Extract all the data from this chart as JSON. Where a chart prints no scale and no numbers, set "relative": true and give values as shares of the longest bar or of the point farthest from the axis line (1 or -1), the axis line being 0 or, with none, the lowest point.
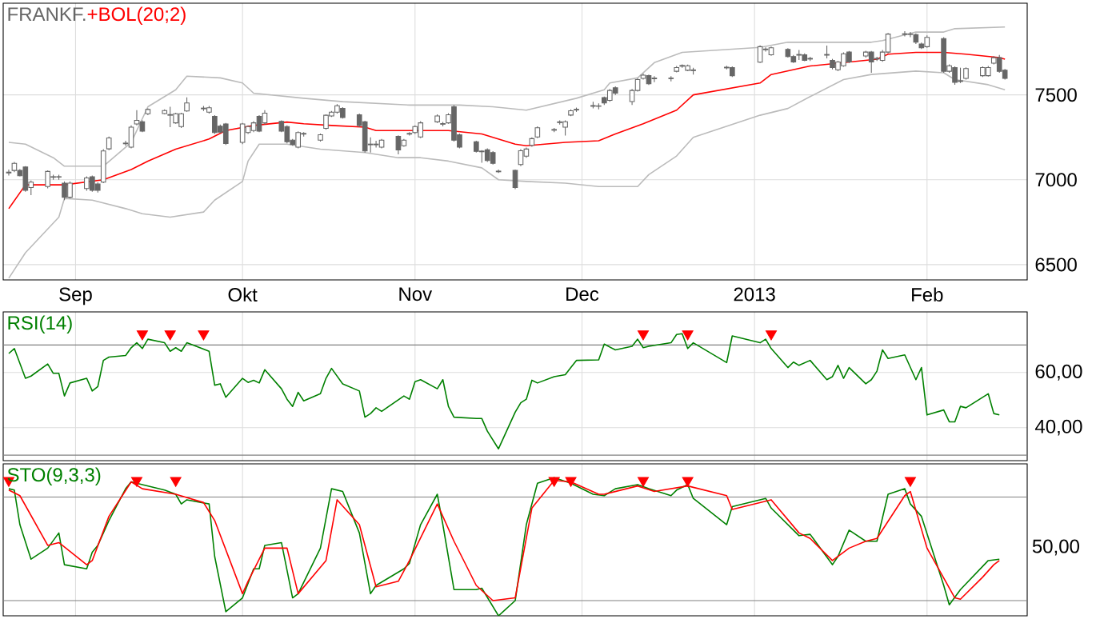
{
  "chart_data": [
    {
      "type": "candlestick",
      "title": "FRANKF.",
      "color": "#666666",
      "x": [
        "2012-08-20",
        "2012-08-21",
        "2012-08-22",
        "2012-08-23",
        "2012-08-24",
        "2012-08-27",
        "2012-08-28",
        "2012-08-29",
        "2012-08-30",
        "2012-08-31",
        "2012-09-03",
        "2012-09-04",
        "2012-09-05",
        "2012-09-06",
        "2012-09-07",
        "2012-09-10",
        "2012-09-11",
        "2012-09-12",
        "2012-09-13",
        "2012-09-14",
        "2012-09-17",
        "2012-09-18",
        "2012-09-19",
        "2012-09-20",
        "2012-09-21",
        "2012-09-24",
        "2012-09-25",
        "2012-09-26",
        "2012-09-27",
        "2012-09-28",
        "2012-10-01",
        "2012-10-02",
        "2012-10-03",
        "2012-10-04",
        "2012-10-05",
        "2012-10-08",
        "2012-10-09",
        "2012-10-10",
        "2012-10-11",
        "2012-10-12",
        "2012-10-15",
        "2012-10-16",
        "2012-10-17",
        "2012-10-18",
        "2012-10-19",
        "2012-10-22",
        "2012-10-23",
        "2012-10-24",
        "2012-10-25",
        "2012-10-26",
        "2012-10-29",
        "2012-10-30",
        "2012-10-31",
        "2012-11-01",
        "2012-11-02",
        "2012-11-05",
        "2012-11-06",
        "2012-11-07",
        "2012-11-08",
        "2012-11-09",
        "2012-11-12",
        "2012-11-13",
        "2012-11-14",
        "2012-11-15",
        "2012-11-16",
        "2012-11-19",
        "2012-11-20",
        "2012-11-21",
        "2012-11-22",
        "2012-11-23",
        "2012-11-26",
        "2012-11-27",
        "2012-11-28",
        "2012-11-29",
        "2012-11-30",
        "2012-12-03",
        "2012-12-04",
        "2012-12-05",
        "2012-12-06",
        "2012-12-07",
        "2012-12-10",
        "2012-12-11",
        "2012-12-12",
        "2012-12-13",
        "2012-12-14",
        "2012-12-17",
        "2012-12-18",
        "2012-12-19",
        "2012-12-20",
        "2012-12-21",
        "2012-12-27",
        "2012-12-28",
        "2013-01-02",
        "2013-01-03",
        "2013-01-04",
        "2013-01-07",
        "2013-01-08",
        "2013-01-09",
        "2013-01-10",
        "2013-01-11",
        "2013-01-14",
        "2013-01-15",
        "2013-01-16",
        "2013-01-17",
        "2013-01-18",
        "2013-01-21",
        "2013-01-22",
        "2013-01-23",
        "2013-01-24",
        "2013-01-25",
        "2013-01-28",
        "2013-01-29",
        "2013-01-30",
        "2013-01-31",
        "2013-02-01",
        "2013-02-04",
        "2013-02-05",
        "2013-02-06",
        "2013-02-07",
        "2013-02-08",
        "2013-02-11",
        "2013-02-12",
        "2013-02-13",
        "2013-02-14",
        "2013-02-15"
      ],
      "ohlc": [
        [
          7040,
          7060,
          7025,
          7045
        ],
        [
          7055,
          7105,
          7045,
          7097
        ],
        [
          7055,
          7062,
          7020,
          7024
        ],
        [
          7075,
          7080,
          6930,
          6938
        ],
        [
          6954,
          6995,
          6910,
          6986
        ],
        [
          6960,
          7055,
          6950,
          7049
        ],
        [
          7015,
          7030,
          7000,
          7018
        ],
        [
          7018,
          7030,
          7000,
          7016
        ],
        [
          6980,
          6990,
          6880,
          6897
        ],
        [
          6897,
          6990,
          6890,
          6980
        ],
        [
          6948,
          7020,
          6935,
          7011
        ],
        [
          7017,
          7025,
          6930,
          6938
        ],
        [
          6975,
          6985,
          6925,
          6938
        ],
        [
          6986,
          7180,
          6980,
          7170
        ],
        [
          7182,
          7255,
          7175,
          7246
        ],
        [
          7212,
          7230,
          7200,
          7216
        ],
        [
          7192,
          7320,
          7185,
          7310
        ],
        [
          7329,
          7410,
          7320,
          7350
        ],
        [
          7341,
          7350,
          7280,
          7287
        ],
        [
          7389,
          7420,
          7380,
          7414
        ],
        [
          7390,
          7415,
          7385,
          7408
        ],
        [
          7380,
          7430,
          7310,
          7384
        ],
        [
          7335,
          7395,
          7330,
          7389
        ],
        [
          7313,
          7395,
          7305,
          7389
        ],
        [
          7405,
          7485,
          7400,
          7452
        ],
        [
          7418,
          7435,
          7405,
          7422
        ],
        [
          7398,
          7435,
          7390,
          7424
        ],
        [
          7373,
          7380,
          7270,
          7278
        ],
        [
          7316,
          7325,
          7275,
          7281
        ],
        [
          7329,
          7335,
          7205,
          7214
        ],
        [
          7220,
          7335,
          7210,
          7329
        ],
        [
          7278,
          7320,
          7270,
          7313
        ],
        [
          7290,
          7345,
          7280,
          7335
        ],
        [
          7373,
          7380,
          7280,
          7287
        ],
        [
          7335,
          7410,
          7325,
          7392
        ],
        [
          7344,
          7350,
          7280,
          7287
        ],
        [
          7313,
          7320,
          7215,
          7224
        ],
        [
          7233,
          7240,
          7200,
          7208
        ],
        [
          7192,
          7285,
          7185,
          7278
        ],
        [
          7269,
          7280,
          7255,
          7273
        ],
        [
          7233,
          7272,
          7225,
          7265
        ],
        [
          7303,
          7385,
          7295,
          7380
        ],
        [
          7376,
          7405,
          7370,
          7398
        ],
        [
          7398,
          7445,
          7390,
          7436
        ],
        [
          7420,
          7428,
          7360,
          7367
        ],
        [
          7383,
          7390,
          7310,
          7319
        ],
        [
          7341,
          7348,
          7160,
          7170
        ],
        [
          7206,
          7250,
          7160,
          7210
        ],
        [
          7210,
          7230,
          7190,
          7206
        ],
        [
          7192,
          7240,
          7185,
          7233
        ],
        [
          7256,
          7262,
          7150,
          7176
        ],
        [
          7200,
          7240,
          7195,
          7233
        ],
        [
          7269,
          7280,
          7260,
          7273
        ],
        [
          7278,
          7320,
          7270,
          7313
        ],
        [
          7252,
          7345,
          7245,
          7335
        ],
        [
          7341,
          7385,
          7335,
          7376
        ],
        [
          7327,
          7340,
          7315,
          7331
        ],
        [
          7335,
          7392,
          7330,
          7383
        ],
        [
          7430,
          7440,
          7225,
          7233
        ],
        [
          7265,
          7272,
          7185,
          7192
        ],
        [
          7224,
          7230,
          7160,
          7167
        ],
        [
          7165,
          7175,
          7100,
          7169
        ],
        [
          7176,
          7185,
          7105,
          7113
        ],
        [
          7160,
          7168,
          7090,
          7097
        ],
        [
          7047,
          7060,
          7040,
          7051
        ],
        [
          7055,
          7060,
          6945,
          6954
        ],
        [
          7090,
          7180,
          7080,
          7171
        ],
        [
          7139,
          7190,
          7130,
          7181
        ],
        [
          7203,
          7250,
          7195,
          7242
        ],
        [
          7252,
          7315,
          7245,
          7306
        ],
        [
          7292,
          7305,
          7280,
          7296
        ],
        [
          7337,
          7350,
          7325,
          7341
        ],
        [
          7310,
          7350,
          7260,
          7342
        ],
        [
          7381,
          7415,
          7375,
          7406
        ],
        [
          7411,
          7425,
          7400,
          7415
        ],
        [
          7433,
          7460,
          7420,
          7437
        ],
        [
          7435,
          7450,
          7415,
          7433
        ],
        [
          7484,
          7490,
          7440,
          7452
        ],
        [
          7468,
          7535,
          7460,
          7526
        ],
        [
          7542,
          7550,
          7500,
          7510
        ],
        [
          7461,
          7535,
          7440,
          7526
        ],
        [
          7526,
          7598,
          7520,
          7590
        ],
        [
          7597,
          7625,
          7590,
          7616
        ],
        [
          7613,
          7620,
          7558,
          7565
        ],
        [
          7595,
          7610,
          7575,
          7599
        ],
        [
          7599,
          7610,
          7580,
          7596
        ],
        [
          7639,
          7670,
          7632,
          7661
        ],
        [
          7669,
          7680,
          7660,
          7673
        ],
        [
          7645,
          7678,
          7640,
          7671
        ],
        [
          7643,
          7660,
          7620,
          7647
        ],
        [
          7659,
          7672,
          7650,
          7663
        ],
        [
          7661,
          7668,
          7605,
          7613
        ],
        [
          7693,
          7792,
          7688,
          7784
        ],
        [
          7766,
          7780,
          7755,
          7770
        ],
        [
          7736,
          7785,
          7730,
          7777
        ],
        [
          7768,
          7775,
          7720,
          7726
        ],
        [
          7726,
          7735,
          7688,
          7694
        ],
        [
          7734,
          7765,
          7705,
          7738
        ],
        [
          7736,
          7745,
          7698,
          7703
        ],
        [
          7711,
          7725,
          7700,
          7715
        ],
        [
          7734,
          7790,
          7715,
          7738
        ],
        [
          7703,
          7712,
          7650,
          7661
        ],
        [
          7648,
          7700,
          7640,
          7694
        ],
        [
          7671,
          7750,
          7665,
          7742
        ],
        [
          7752,
          7758,
          7688,
          7694
        ],
        [
          7729,
          7760,
          7720,
          7752
        ],
        [
          7752,
          7758,
          7630,
          7694
        ],
        [
          7711,
          7725,
          7700,
          7715
        ],
        [
          7703,
          7765,
          7695,
          7752
        ],
        [
          7752,
          7865,
          7745,
          7858
        ],
        [
          7856,
          7875,
          7845,
          7860
        ],
        [
          7858,
          7870,
          7840,
          7856
        ],
        [
          7855,
          7862,
          7800,
          7810
        ],
        [
          7800,
          7808,
          7770,
          7777
        ],
        [
          7784,
          7850,
          7778,
          7839
        ],
        [
          7832,
          7840,
          7630,
          7639
        ],
        [
          7639,
          7680,
          7630,
          7671
        ],
        [
          7661,
          7668,
          7560,
          7574
        ],
        [
          7579,
          7660,
          7570,
          7583
        ],
        [
          7597,
          7662,
          7590,
          7655
        ],
        [
          7613,
          7668,
          7605,
          7661
        ],
        [
          7613,
          7670,
          7608,
          7661
        ],
        [
          7687,
          7728,
          7680,
          7719
        ],
        [
          7719,
          7735,
          7630,
          7639
        ],
        [
          7645,
          7652,
          7590,
          7597
        ]
      ],
      "xlim": [
        "2012-08-19",
        "2013-02-19"
      ],
      "xticks": [
        {
          "value": "2012-09-01",
          "label": "Sep"
        },
        {
          "value": "2012-10-01",
          "label": "Okt"
        },
        {
          "value": "2012-11-01",
          "label": "Nov"
        },
        {
          "value": "2012-12-01",
          "label": "Dec"
        },
        {
          "value": "2013-01-01",
          "label": "2013"
        },
        {
          "value": "2013-02-01",
          "label": "Feb"
        }
      ],
      "ylim": [
        6410,
        8040
      ],
      "yticks": [
        6500,
        7000,
        7500
      ],
      "grid": true,
      "series": [
        {
          "name": "+BOL(20;2)",
          "type": "line",
          "color": "#ff0000",
          "x": [
            "2012-08-20",
            "2012-08-23",
            "2012-08-30",
            "2012-09-06",
            "2012-09-11",
            "2012-09-14",
            "2012-09-19",
            "2012-09-25",
            "2012-09-28",
            "2012-10-03",
            "2012-10-09",
            "2012-10-12",
            "2012-10-17",
            "2012-10-23",
            "2012-10-25",
            "2012-10-31",
            "2012-11-07",
            "2012-11-13",
            "2012-11-19",
            "2012-11-21",
            "2012-11-28",
            "2012-12-04",
            "2012-12-07",
            "2012-12-12",
            "2012-12-18",
            "2012-12-21",
            "2013-01-02",
            "2013-01-04",
            "2013-01-11",
            "2013-01-17",
            "2013-01-23",
            "2013-01-25",
            "2013-01-30",
            "2013-02-04",
            "2013-02-08",
            "2013-02-14",
            "2013-02-15"
          ],
          "values": [
            6830,
            6970,
            6970,
            7000,
            7060,
            7110,
            7180,
            7240,
            7290,
            7320,
            7340,
            7330,
            7320,
            7310,
            7290,
            7290,
            7290,
            7270,
            7210,
            7200,
            7220,
            7230,
            7270,
            7330,
            7410,
            7500,
            7570,
            7620,
            7670,
            7690,
            7710,
            7740,
            7750,
            7750,
            7740,
            7720,
            7710
          ]
        },
        {
          "type": "line",
          "color": "#bbbbbb",
          "x": [
            "2012-08-20",
            "2012-08-23",
            "2012-08-28",
            "2012-08-30",
            "2012-09-06",
            "2012-09-11",
            "2012-09-14",
            "2012-09-19",
            "2012-09-21",
            "2012-09-27",
            "2012-10-01",
            "2012-10-03",
            "2012-10-12",
            "2012-10-19",
            "2012-10-31",
            "2012-11-09",
            "2012-11-15",
            "2012-11-21",
            "2012-11-30",
            "2012-12-05",
            "2012-12-06",
            "2012-12-11",
            "2012-12-14",
            "2012-12-19",
            "2013-01-02",
            "2013-01-07",
            "2013-01-11",
            "2013-01-22",
            "2013-01-24",
            "2013-01-30",
            "2013-02-04",
            "2013-02-06",
            "2013-02-15"
          ],
          "values": [
            7220,
            7210,
            7130,
            7080,
            7080,
            7220,
            7430,
            7530,
            7610,
            7600,
            7570,
            7510,
            7480,
            7460,
            7440,
            7440,
            7430,
            7410,
            7480,
            7530,
            7570,
            7600,
            7690,
            7750,
            7780,
            7810,
            7810,
            7810,
            7820,
            7870,
            7870,
            7890,
            7900
          ]
        },
        {
          "type": "line",
          "color": "#bbbbbb",
          "x": [
            "2012-08-20",
            "2012-08-23",
            "2012-08-29",
            "2012-08-30",
            "2012-09-04",
            "2012-09-10",
            "2012-09-13",
            "2012-09-18",
            "2012-09-24",
            "2012-09-26",
            "2012-10-01",
            "2012-10-02",
            "2012-10-04",
            "2012-10-09",
            "2012-10-15",
            "2012-10-23",
            "2012-10-29",
            "2012-11-02",
            "2012-11-07",
            "2012-11-13",
            "2012-11-16",
            "2012-11-21",
            "2012-11-28",
            "2012-12-04",
            "2012-12-11",
            "2012-12-13",
            "2012-12-18",
            "2012-12-21",
            "2013-01-02",
            "2013-01-07",
            "2013-01-11",
            "2013-01-17",
            "2013-01-22",
            "2013-01-30",
            "2013-02-04",
            "2013-02-06",
            "2013-02-12",
            "2013-02-15"
          ],
          "values": [
            6420,
            6570,
            6780,
            6890,
            6880,
            6830,
            6800,
            6780,
            6810,
            6880,
            6990,
            7110,
            7210,
            7210,
            7180,
            7160,
            7130,
            7130,
            7110,
            7070,
            7000,
            6990,
            6980,
            6960,
            6960,
            7030,
            7140,
            7250,
            7380,
            7420,
            7490,
            7590,
            7620,
            7640,
            7630,
            7590,
            7560,
            7530
          ]
        }
      ]
    },
    {
      "type": "line",
      "tick_labels": "y",
      "grid": true,
      "xlim": [
        "2012-08-19",
        "2013-02-19"
      ],
      "xticks": [
        {
          "value": "2012-09-01",
          "label": null
        },
        {
          "value": "2012-10-01",
          "label": null
        },
        {
          "value": "2012-11-01",
          "label": null
        },
        {
          "value": "2012-12-01",
          "label": null
        },
        {
          "value": "2013-01-01",
          "label": null
        },
        {
          "value": "2013-02-01",
          "label": null
        }
      ],
      "ylim": [
        28,
        82
      ],
      "yticks": [
        {
          "value": 40,
          "label": "40,00"
        },
        {
          "value": 60,
          "label": "60,00"
        }
      ],
      "ref_lines": [
        {
          "axis": "y",
          "value": 70,
          "color": "#808080"
        },
        {
          "axis": "y",
          "value": 30,
          "color": "#808080"
        }
      ],
      "series": [
        {
          "name": "RSI(14)",
          "color": "#008000",
          "x": [
            "2012-08-20",
            "2012-08-21",
            "2012-08-23",
            "2012-08-24",
            "2012-08-27",
            "2012-08-28",
            "2012-08-29",
            "2012-08-30",
            "2012-08-31",
            "2012-09-03",
            "2012-09-04",
            "2012-09-05",
            "2012-09-06",
            "2012-09-07",
            "2012-09-10",
            "2012-09-11",
            "2012-09-12",
            "2012-09-13",
            "2012-09-14",
            "2012-09-17",
            "2012-09-18",
            "2012-09-19",
            "2012-09-20",
            "2012-09-21",
            "2012-09-25",
            "2012-09-26",
            "2012-09-27",
            "2012-09-28",
            "2012-10-01",
            "2012-10-02",
            "2012-10-03",
            "2012-10-04",
            "2012-10-05",
            "2012-10-08",
            "2012-10-09",
            "2012-10-10",
            "2012-10-11",
            "2012-10-12",
            "2012-10-15",
            "2012-10-16",
            "2012-10-17",
            "2012-10-19",
            "2012-10-22",
            "2012-10-23",
            "2012-10-24",
            "2012-10-25",
            "2012-10-26",
            "2012-10-30",
            "2012-10-31",
            "2012-11-01",
            "2012-11-02",
            "2012-11-05",
            "2012-11-06",
            "2012-11-07",
            "2012-11-08",
            "2012-11-12",
            "2012-11-13",
            "2012-11-14",
            "2012-11-16",
            "2012-11-19",
            "2012-11-20",
            "2012-11-21",
            "2012-11-22",
            "2012-11-23",
            "2012-11-26",
            "2012-11-28",
            "2012-11-29",
            "2012-11-30",
            "2012-12-04",
            "2012-12-05",
            "2012-12-07",
            "2012-12-10",
            "2012-12-11",
            "2012-12-12",
            "2012-12-13",
            "2012-12-17",
            "2012-12-18",
            "2012-12-19",
            "2012-12-20",
            "2012-12-21",
            "2012-12-27",
            "2012-12-28",
            "2013-01-02",
            "2013-01-03",
            "2013-01-04",
            "2013-01-07",
            "2013-01-08",
            "2013-01-09",
            "2013-01-11",
            "2013-01-14",
            "2013-01-15",
            "2013-01-16",
            "2013-01-17",
            "2013-01-18",
            "2013-01-21",
            "2013-01-22",
            "2013-01-23",
            "2013-01-24",
            "2013-01-25",
            "2013-01-28",
            "2013-01-30",
            "2013-01-31",
            "2013-02-01",
            "2013-02-04",
            "2013-02-05",
            "2013-02-06",
            "2013-02-07",
            "2013-02-08",
            "2013-02-12",
            "2013-02-13",
            "2013-02-14"
          ],
          "values": [
            66.9,
            68.7,
            57.9,
            58.7,
            63.1,
            59.7,
            59.7,
            51.5,
            56.2,
            57.9,
            53.3,
            54.9,
            64.4,
            65.6,
            66.2,
            69.0,
            70.8,
            68.7,
            72.1,
            70.8,
            67.7,
            69.0,
            67.7,
            70.8,
            67.7,
            55.4,
            55.9,
            51.0,
            57.9,
            56.4,
            57.2,
            56.2,
            61.0,
            54.1,
            50.3,
            47.7,
            52.8,
            49.7,
            52.3,
            57.9,
            61.5,
            55.9,
            53.3,
            43.8,
            45.1,
            47.2,
            45.9,
            51.5,
            50.3,
            56.7,
            57.4,
            54.1,
            57.4,
            47.7,
            43.8,
            43.3,
            43.3,
            38.7,
            32.3,
            45.6,
            49.0,
            50.3,
            57.2,
            56.2,
            58.5,
            59.2,
            61.8,
            64.4,
            64.6,
            70.3,
            68.2,
            69.5,
            72.1,
            69.0,
            69.5,
            70.8,
            73.8,
            74.1,
            68.7,
            70.8,
            63.6,
            73.3,
            70.8,
            72.1,
            68.7,
            61.8,
            63.8,
            62.6,
            64.4,
            57.4,
            58.5,
            62.6,
            57.9,
            61.8,
            55.9,
            57.4,
            60.5,
            68.2,
            65.1,
            66.4,
            57.4,
            61.8,
            44.6,
            46.4,
            42.1,
            42.1,
            47.7,
            47.2,
            52.3,
            45.1,
            44.6
          ]
        },
        {
          "type": "scatter",
          "marker": "triangle",
          "color": "#ff0000",
          "x": [
            "2012-09-13",
            "2012-09-18",
            "2012-09-24",
            "2012-12-12",
            "2012-12-20",
            "2013-01-04"
          ],
          "values": [
            74,
            74,
            74,
            74,
            74,
            74
          ]
        }
      ]
    },
    {
      "type": "line",
      "tick_labels": false,
      "grid": "x",
      "relative": true,
      "xlim": [
        "2012-08-19",
        "2013-02-19"
      ],
      "xticks": [
        {
          "value": "2012-09-01",
          "label": null
        },
        {
          "value": "2012-10-01",
          "label": null
        },
        {
          "value": "2012-11-01",
          "label": null
        },
        {
          "value": "2012-12-01",
          "label": null
        },
        {
          "value": "2013-01-01",
          "label": null
        },
        {
          "value": "2013-02-01",
          "label": null
        }
      ],
      "annotations": [
        "50,00"
      ],
      "ref_lines": [
        {
          "axis": "y",
          "value": 0.86,
          "color": "#808080"
        },
        {
          "axis": "y",
          "value": 0.11,
          "color": "#808080"
        }
      ],
      "series": [
        {
          "name": "STO(9,3,3)",
          "color": "#008000",
          "x": [
            "2012-08-20",
            "2012-08-21",
            "2012-08-22",
            "2012-08-24",
            "2012-08-27",
            "2012-08-29",
            "2012-08-30",
            "2012-09-03",
            "2012-09-04",
            "2012-09-05",
            "2012-09-07",
            "2012-09-10",
            "2012-09-11",
            "2012-09-13",
            "2012-09-17",
            "2012-09-19",
            "2012-09-20",
            "2012-09-21",
            "2012-09-25",
            "2012-09-26",
            "2012-09-28",
            "2012-10-01",
            "2012-10-03",
            "2012-10-04",
            "2012-10-05",
            "2012-10-08",
            "2012-10-10",
            "2012-10-11",
            "2012-10-15",
            "2012-10-17",
            "2012-10-19",
            "2012-10-22",
            "2012-10-24",
            "2012-10-25",
            "2012-10-30",
            "2012-10-31",
            "2012-11-02",
            "2012-11-05",
            "2012-11-06",
            "2012-11-08",
            "2012-11-12",
            "2012-11-13",
            "2012-11-16",
            "2012-11-19",
            "2012-11-21",
            "2012-11-23",
            "2012-11-26",
            "2012-11-29",
            "2012-12-03",
            "2012-12-05",
            "2012-12-07",
            "2012-12-11",
            "2012-12-13",
            "2012-12-17",
            "2012-12-18",
            "2012-12-20",
            "2012-12-21",
            "2012-12-27",
            "2012-12-28",
            "2013-01-03",
            "2013-01-04",
            "2013-01-09",
            "2013-01-11",
            "2013-01-15",
            "2013-01-16",
            "2013-01-18",
            "2013-01-21",
            "2013-01-23",
            "2013-01-25",
            "2013-01-28",
            "2013-01-29",
            "2013-01-31",
            "2013-02-04",
            "2013-02-05",
            "2013-02-07",
            "2013-02-12",
            "2013-02-14"
          ],
          "values": [
            0.92,
            0.91,
            0.66,
            0.41,
            0.49,
            0.6,
            0.37,
            0.34,
            0.46,
            0.51,
            0.69,
            0.92,
            0.97,
            0.95,
            0.91,
            0.88,
            0.81,
            0.84,
            0.81,
            0.43,
            0.03,
            0.13,
            0.34,
            0.34,
            0.51,
            0.53,
            0.13,
            0.16,
            0.49,
            0.92,
            0.9,
            0.6,
            0.16,
            0.22,
            0.34,
            0.38,
            0.66,
            0.88,
            0.66,
            0.19,
            0.19,
            0.2,
            0,
            0.11,
            0.66,
            0.96,
            1,
            0.96,
            0.88,
            0.87,
            0.92,
            0.95,
            0.92,
            0.87,
            0.91,
            0.95,
            0.85,
            0.66,
            0.79,
            0.85,
            0.78,
            0.58,
            0.59,
            0.37,
            0.43,
            0.62,
            0.54,
            0.54,
            0.88,
            0.92,
            0.81,
            0.72,
            0.22,
            0.08,
            0.19,
            0.4,
            0.41
          ]
        },
        {
          "color": "#ff0000",
          "x": [
            "2012-08-20",
            "2012-08-22",
            "2012-08-27",
            "2012-08-29",
            "2012-09-03",
            "2012-09-04",
            "2012-09-07",
            "2012-09-11",
            "2012-09-13",
            "2012-09-19",
            "2012-09-24",
            "2012-09-26",
            "2012-10-01",
            "2012-10-02",
            "2012-10-05",
            "2012-10-09",
            "2012-10-11",
            "2012-10-16",
            "2012-10-18",
            "2012-10-22",
            "2012-10-25",
            "2012-10-29",
            "2012-10-31",
            "2012-11-05",
            "2012-11-08",
            "2012-11-12",
            "2012-11-15",
            "2012-11-19",
            "2012-11-22",
            "2012-11-26",
            "2012-11-29",
            "2012-12-04",
            "2012-12-05",
            "2012-12-11",
            "2012-12-14",
            "2012-12-20",
            "2012-12-27",
            "2012-12-28",
            "2013-01-04",
            "2013-01-09",
            "2013-01-11",
            "2013-01-15",
            "2013-01-18",
            "2013-01-21",
            "2013-01-23",
            "2013-01-28",
            "2013-01-29",
            "2013-02-01",
            "2013-02-06",
            "2013-02-07",
            "2013-02-11",
            "2013-02-13",
            "2013-02-14"
          ],
          "values": [
            0.91,
            0.87,
            0.51,
            0.53,
            0.37,
            0.4,
            0.72,
            0.97,
            0.92,
            0.88,
            0.82,
            0.69,
            0.16,
            0.25,
            0.49,
            0.49,
            0.16,
            0.4,
            0.84,
            0.66,
            0.21,
            0.25,
            0.4,
            0.81,
            0.54,
            0.22,
            0.11,
            0.13,
            0.78,
            0.98,
            0.97,
            0.88,
            0.88,
            0.94,
            0.9,
            0.94,
            0.87,
            0.77,
            0.84,
            0.6,
            0.56,
            0.4,
            0.49,
            0.54,
            0.56,
            0.87,
            0.9,
            0.49,
            0.13,
            0.12,
            0.28,
            0.37,
            0.4
          ]
        },
        {
          "type": "scatter",
          "marker": "triangle",
          "color": "#ff0000",
          "x": [
            "2012-08-20",
            "2012-09-12",
            "2012-09-19",
            "2012-11-26",
            "2012-11-29",
            "2012-12-12",
            "2012-12-20",
            "2013-01-29"
          ],
          "values": [
            0.98,
            0.98,
            0.98,
            0.98,
            0.98,
            0.98,
            0.98,
            0.98
          ]
        }
      ]
    }
  ]
}
